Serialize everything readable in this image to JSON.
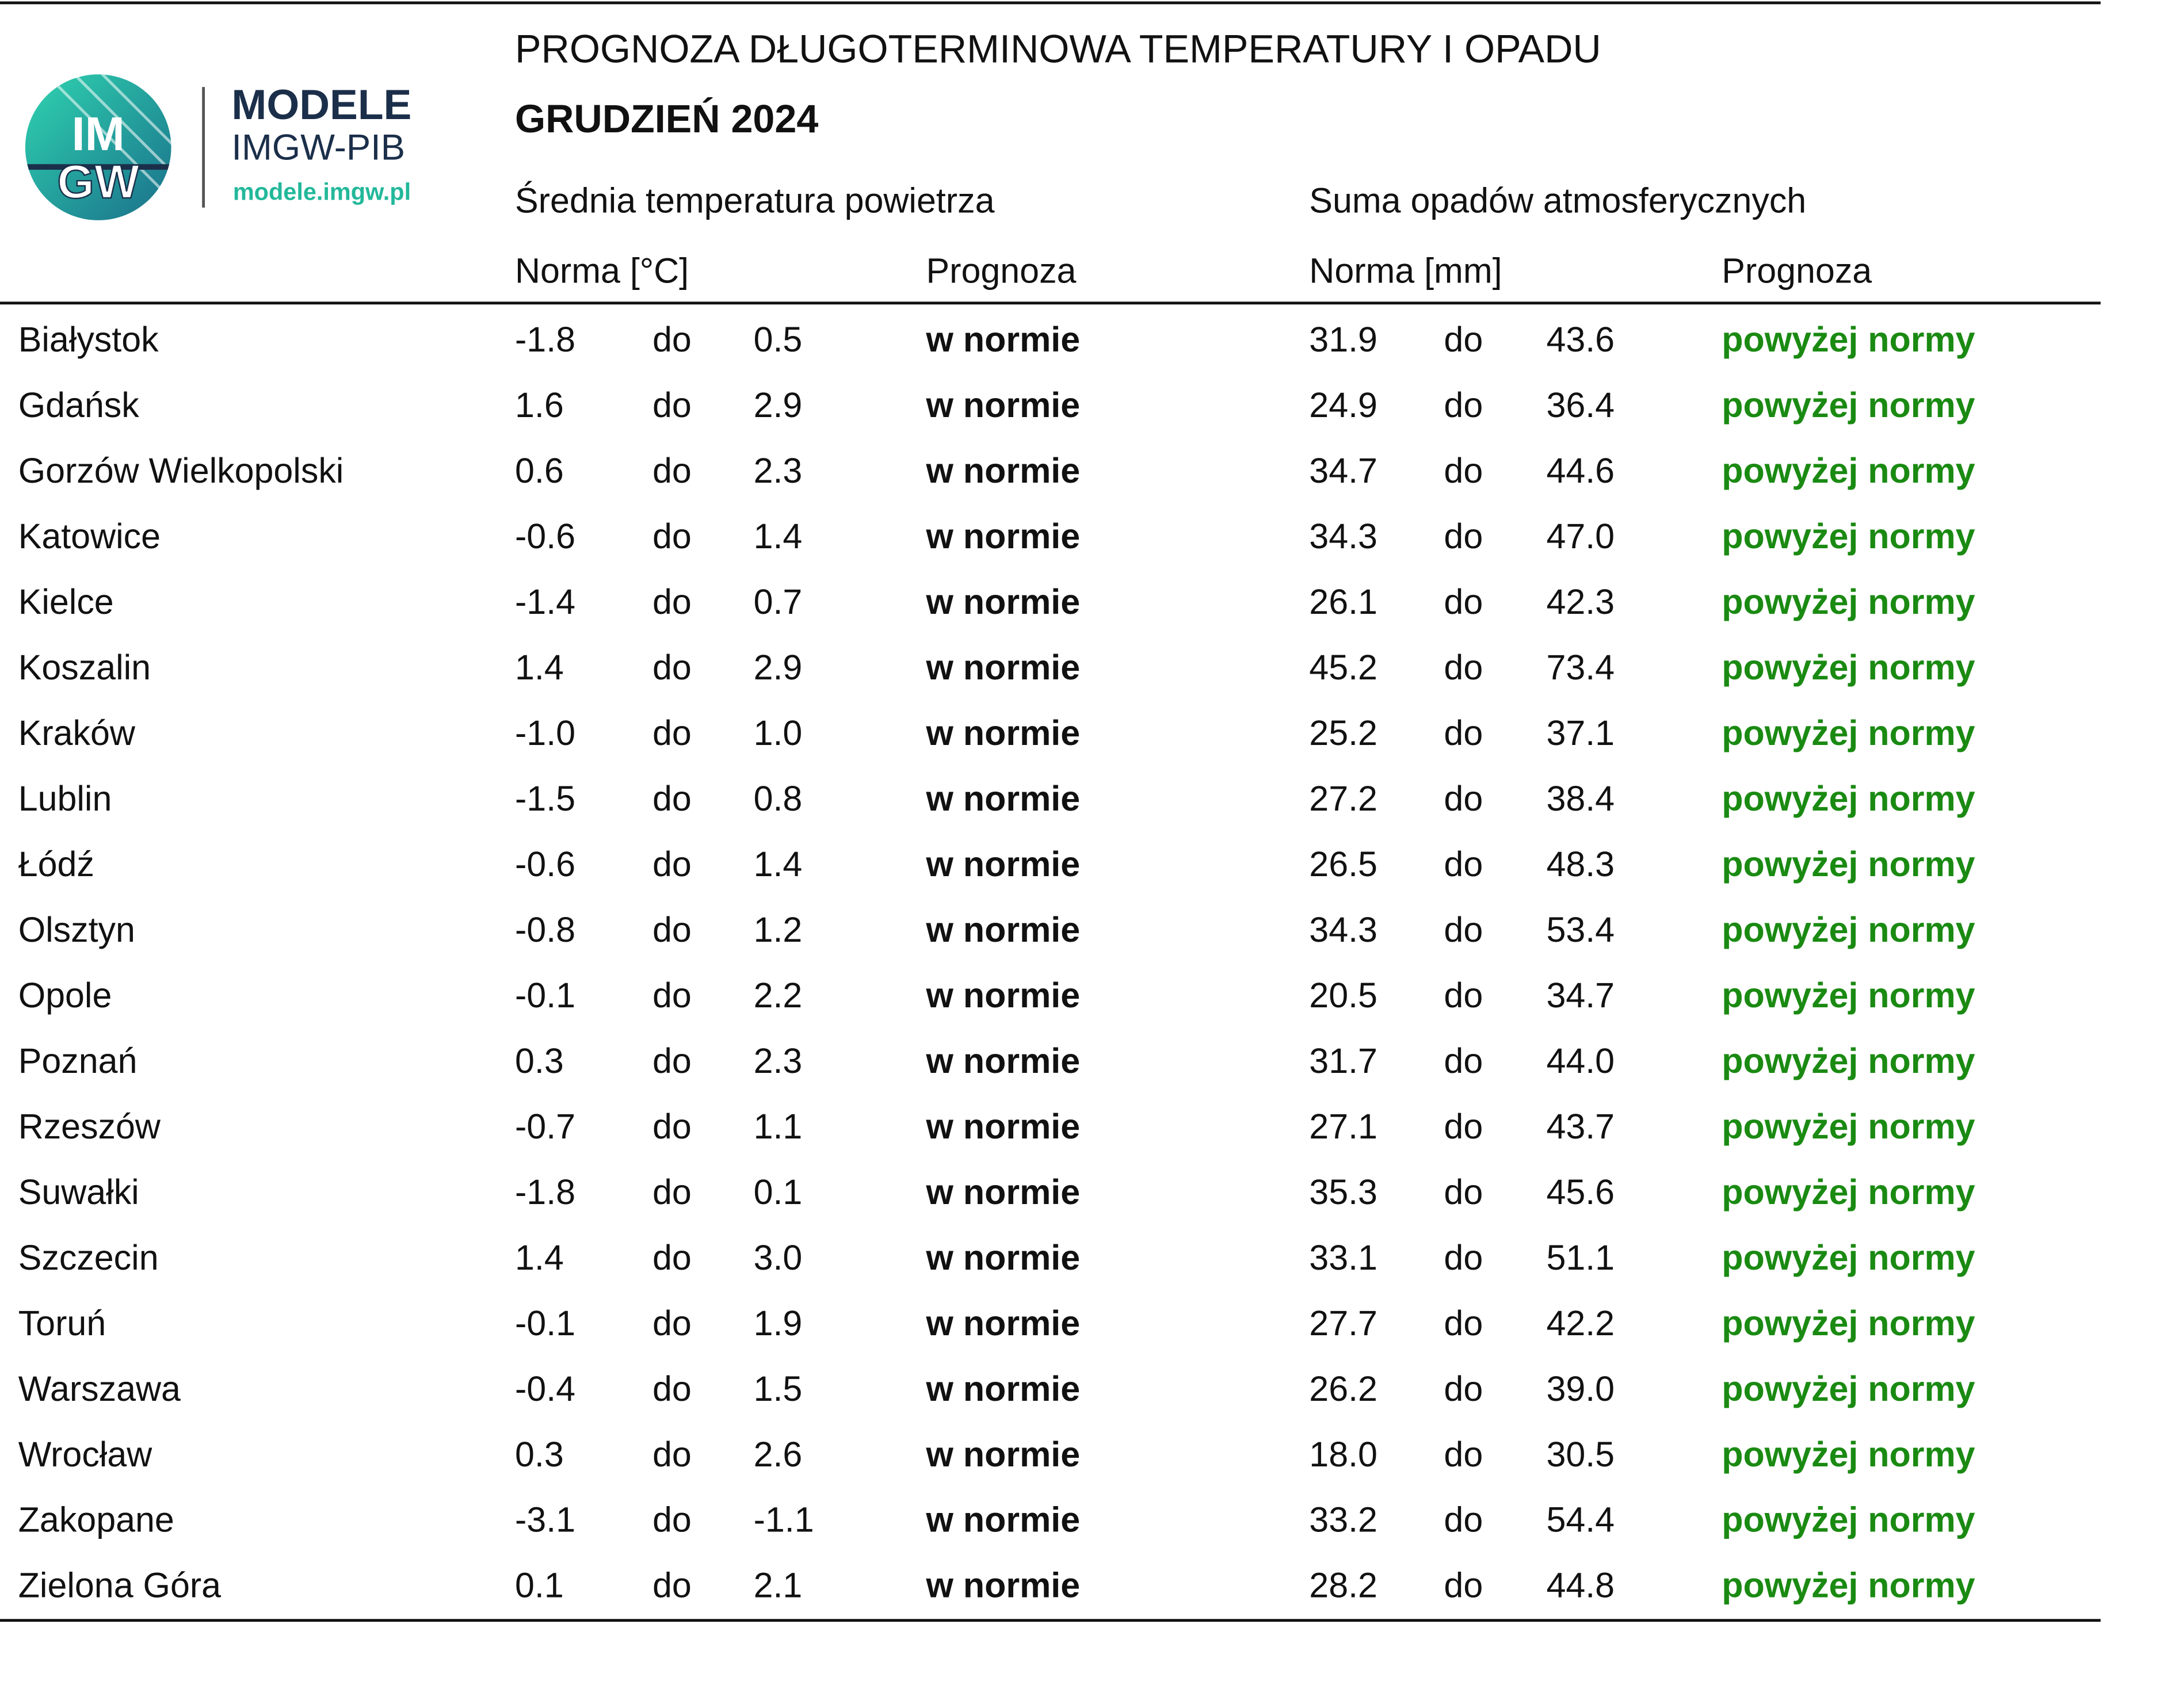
{
  "logo": {
    "mark_top": "IM",
    "mark_bottom": "GW",
    "brand": "MODELE",
    "org": "IMGW-PIB",
    "url": "modele.imgw.pl"
  },
  "header": {
    "title": "PROGNOZA DŁUGOTERMINOWA TEMPERATURY I OPADU",
    "subtitle": "GRUDZIEŃ 2024",
    "group_temperature": "Średnia temperatura powietrza",
    "group_precipitation": "Suma opadów atmosferycznych",
    "temp_norm": "Norma [°C]",
    "temp_forecast": "Prognoza",
    "precip_norm": "Norma [mm]",
    "precip_forecast": "Prognoza"
  },
  "table": {
    "rows": [
      [
        "Białystok",
        "-1.8",
        "do",
        "0.5",
        "w normie",
        "31.9",
        "do",
        "43.6",
        "powyżej normy"
      ],
      [
        "Gdańsk",
        "1.6",
        "do",
        "2.9",
        "w normie",
        "24.9",
        "do",
        "36.4",
        "powyżej normy"
      ],
      [
        "Gorzów Wielkopolski",
        "0.6",
        "do",
        "2.3",
        "w normie",
        "34.7",
        "do",
        "44.6",
        "powyżej normy"
      ],
      [
        "Katowice",
        "-0.6",
        "do",
        "1.4",
        "w normie",
        "34.3",
        "do",
        "47.0",
        "powyżej normy"
      ],
      [
        "Kielce",
        "-1.4",
        "do",
        "0.7",
        "w normie",
        "26.1",
        "do",
        "42.3",
        "powyżej normy"
      ],
      [
        "Koszalin",
        "1.4",
        "do",
        "2.9",
        "w normie",
        "45.2",
        "do",
        "73.4",
        "powyżej normy"
      ],
      [
        "Kraków",
        "-1.0",
        "do",
        "1.0",
        "w normie",
        "25.2",
        "do",
        "37.1",
        "powyżej normy"
      ],
      [
        "Lublin",
        "-1.5",
        "do",
        "0.8",
        "w normie",
        "27.2",
        "do",
        "38.4",
        "powyżej normy"
      ],
      [
        "Łódź",
        "-0.6",
        "do",
        "1.4",
        "w normie",
        "26.5",
        "do",
        "48.3",
        "powyżej normy"
      ],
      [
        "Olsztyn",
        "-0.8",
        "do",
        "1.2",
        "w normie",
        "34.3",
        "do",
        "53.4",
        "powyżej normy"
      ],
      [
        "Opole",
        "-0.1",
        "do",
        "2.2",
        "w normie",
        "20.5",
        "do",
        "34.7",
        "powyżej normy"
      ],
      [
        "Poznań",
        "0.3",
        "do",
        "2.3",
        "w normie",
        "31.7",
        "do",
        "44.0",
        "powyżej normy"
      ],
      [
        "Rzeszów",
        "-0.7",
        "do",
        "1.1",
        "w normie",
        "27.1",
        "do",
        "43.7",
        "powyżej normy"
      ],
      [
        "Suwałki",
        "-1.8",
        "do",
        "0.1",
        "w normie",
        "35.3",
        "do",
        "45.6",
        "powyżej normy"
      ],
      [
        "Szczecin",
        "1.4",
        "do",
        "3.0",
        "w normie",
        "33.1",
        "do",
        "51.1",
        "powyżej normy"
      ],
      [
        "Toruń",
        "-0.1",
        "do",
        "1.9",
        "w normie",
        "27.7",
        "do",
        "42.2",
        "powyżej normy"
      ],
      [
        "Warszawa",
        "-0.4",
        "do",
        "1.5",
        "w normie",
        "26.2",
        "do",
        "39.0",
        "powyżej normy"
      ],
      [
        "Wrocław",
        "0.3",
        "do",
        "2.6",
        "w normie",
        "18.0",
        "do",
        "30.5",
        "powyżej normy"
      ],
      [
        "Zakopane",
        "-3.1",
        "do",
        "-1.1",
        "w normie",
        "33.2",
        "do",
        "54.4",
        "powyżej normy"
      ],
      [
        "Zielona Góra",
        "0.1",
        "do",
        "2.1",
        "w normie",
        "28.2",
        "do",
        "44.8",
        "powyżej normy"
      ]
    ]
  }
}
